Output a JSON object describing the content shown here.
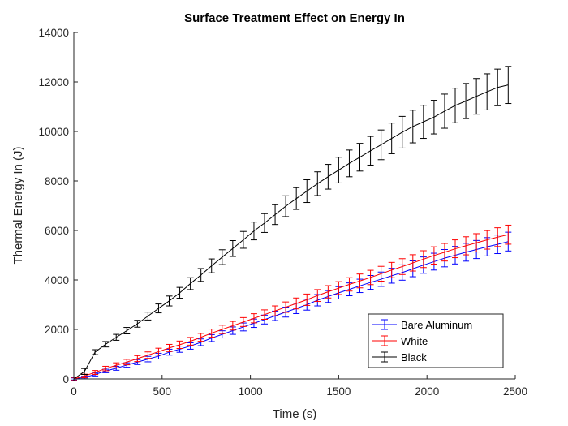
{
  "chart_data": {
    "type": "line",
    "title": "Surface Treatment Effect on Energy In",
    "xlabel": "Time (s)",
    "ylabel": "Thermal Energy In (J)",
    "xlim": [
      0,
      2500
    ],
    "ylim": [
      0,
      14000
    ],
    "xticks": [
      0,
      500,
      1000,
      1500,
      2000,
      2500
    ],
    "yticks": [
      0,
      2000,
      4000,
      6000,
      8000,
      10000,
      12000,
      14000
    ],
    "grid": false,
    "legend_position": "bottom-right",
    "error_bars": true,
    "series": [
      {
        "name": "Bare Aluminum",
        "color": "#0000ff",
        "x": [
          0,
          60,
          120,
          180,
          240,
          300,
          360,
          420,
          480,
          540,
          600,
          660,
          720,
          780,
          840,
          900,
          960,
          1020,
          1080,
          1140,
          1200,
          1260,
          1320,
          1380,
          1440,
          1500,
          1560,
          1620,
          1680,
          1740,
          1800,
          1860,
          1920,
          1980,
          2040,
          2100,
          2160,
          2220,
          2280,
          2340,
          2400,
          2460
        ],
        "y": [
          0,
          60,
          180,
          320,
          430,
          560,
          680,
          800,
          920,
          1080,
          1200,
          1330,
          1480,
          1650,
          1800,
          1950,
          2100,
          2250,
          2400,
          2550,
          2700,
          2850,
          3000,
          3180,
          3330,
          3480,
          3620,
          3760,
          3900,
          4030,
          4170,
          4300,
          4450,
          4600,
          4740,
          4880,
          5000,
          5120,
          5230,
          5340,
          5440,
          5550
        ],
        "error": [
          40,
          50,
          60,
          70,
          80,
          90,
          100,
          110,
          115,
          120,
          125,
          130,
          135,
          140,
          145,
          150,
          160,
          170,
          180,
          190,
          200,
          210,
          220,
          230,
          240,
          250,
          260,
          270,
          280,
          290,
          300,
          310,
          320,
          330,
          340,
          350,
          355,
          360,
          365,
          370,
          375,
          380
        ]
      },
      {
        "name": "White",
        "color": "#ff0000",
        "x": [
          0,
          60,
          120,
          180,
          240,
          300,
          360,
          420,
          480,
          540,
          600,
          660,
          720,
          780,
          840,
          900,
          960,
          1020,
          1080,
          1140,
          1200,
          1260,
          1320,
          1380,
          1440,
          1500,
          1560,
          1620,
          1680,
          1740,
          1800,
          1860,
          1920,
          1980,
          2040,
          2100,
          2160,
          2220,
          2280,
          2340,
          2400,
          2460
        ],
        "y": [
          0,
          120,
          260,
          420,
          550,
          680,
          820,
          960,
          1100,
          1250,
          1380,
          1520,
          1680,
          1850,
          2000,
          2150,
          2300,
          2450,
          2600,
          2750,
          2900,
          3050,
          3200,
          3370,
          3520,
          3670,
          3820,
          3960,
          4100,
          4250,
          4400,
          4540,
          4690,
          4840,
          4990,
          5120,
          5260,
          5380,
          5500,
          5620,
          5730,
          5830
        ],
        "error": [
          60,
          70,
          80,
          90,
          100,
          110,
          120,
          130,
          140,
          145,
          150,
          155,
          160,
          165,
          170,
          175,
          180,
          185,
          190,
          200,
          210,
          220,
          230,
          240,
          250,
          260,
          270,
          280,
          290,
          300,
          310,
          320,
          330,
          340,
          350,
          355,
          360,
          365,
          370,
          375,
          380,
          385
        ]
      },
      {
        "name": "Black",
        "color": "#000000",
        "x": [
          0,
          60,
          120,
          180,
          240,
          300,
          360,
          420,
          480,
          540,
          600,
          660,
          720,
          780,
          840,
          900,
          960,
          1020,
          1080,
          1140,
          1200,
          1260,
          1320,
          1380,
          1440,
          1500,
          1560,
          1620,
          1680,
          1740,
          1800,
          1860,
          1920,
          1980,
          2040,
          2100,
          2160,
          2220,
          2280,
          2340,
          2400,
          2460
        ],
        "y": [
          0,
          300,
          1080,
          1400,
          1680,
          1950,
          2230,
          2540,
          2850,
          3150,
          3480,
          3850,
          4200,
          4570,
          4920,
          5270,
          5620,
          5980,
          6300,
          6640,
          6980,
          7290,
          7590,
          7890,
          8170,
          8440,
          8710,
          8960,
          9220,
          9460,
          9720,
          9970,
          10200,
          10390,
          10580,
          10820,
          11050,
          11230,
          11420,
          11600,
          11780,
          11880
        ],
        "error": [
          80,
          120,
          100,
          110,
          120,
          130,
          140,
          160,
          180,
          200,
          220,
          240,
          260,
          280,
          300,
          320,
          340,
          360,
          380,
          400,
          420,
          440,
          460,
          480,
          500,
          520,
          540,
          560,
          580,
          600,
          620,
          640,
          660,
          670,
          680,
          690,
          700,
          710,
          720,
          730,
          740,
          750
        ]
      }
    ]
  }
}
